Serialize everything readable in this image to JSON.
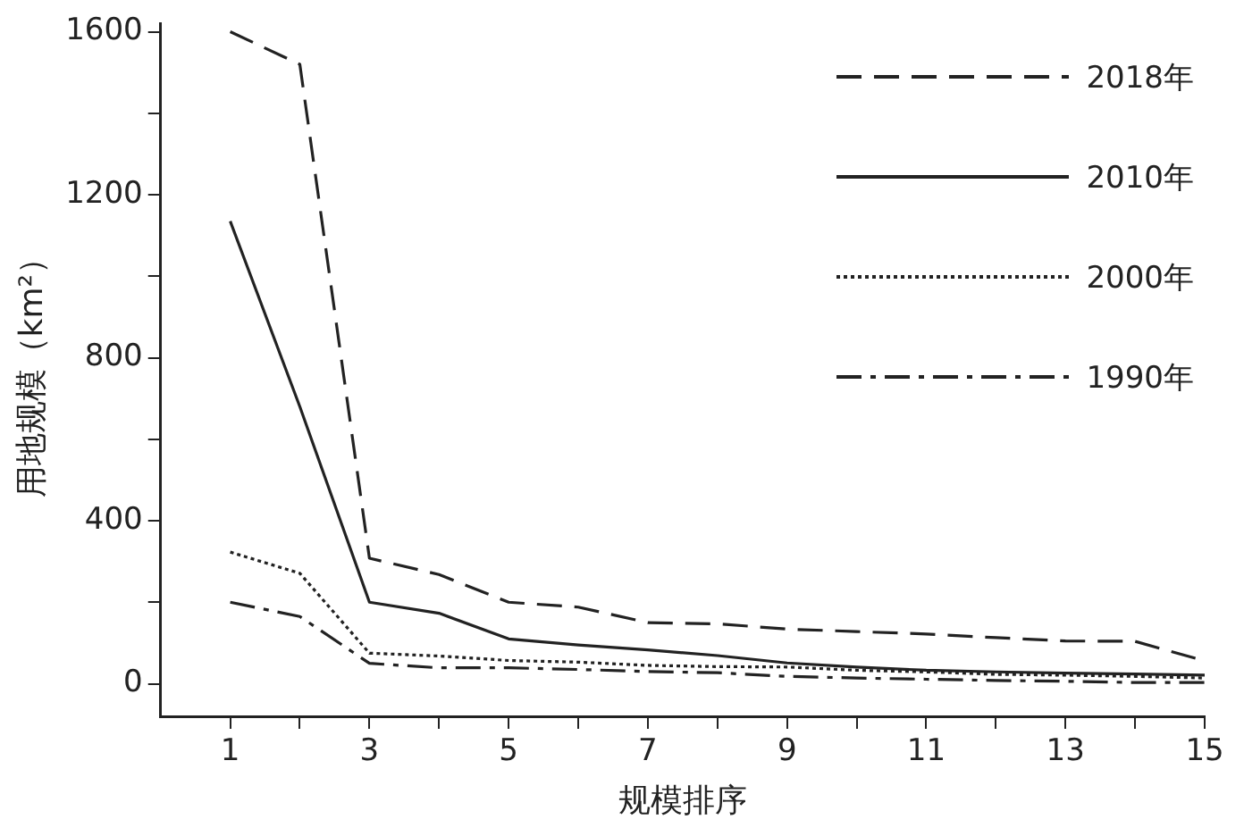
{
  "chart_data": {
    "type": "line",
    "xlabel": "规模排序",
    "ylabel": "用地规模（km²）",
    "x": [
      1,
      2,
      3,
      4,
      5,
      6,
      7,
      8,
      9,
      10,
      11,
      12,
      13,
      14,
      15
    ],
    "xlim": [
      0,
      15
    ],
    "xticks": [
      1,
      {
        "value": 2,
        "label": null
      },
      3,
      {
        "value": 4,
        "label": null
      },
      5,
      {
        "value": 6,
        "label": null
      },
      7,
      {
        "value": 8,
        "label": null
      },
      9,
      {
        "value": 10,
        "label": null
      },
      11,
      {
        "value": 12,
        "label": null
      },
      13,
      {
        "value": 14,
        "label": null
      },
      15
    ],
    "ylim": [
      -80,
      1620
    ],
    "yticks": [
      0,
      {
        "value": 200,
        "label": null
      },
      400,
      {
        "value": 600,
        "label": null
      },
      800,
      {
        "value": 1000,
        "label": null
      },
      1200,
      {
        "value": 1400,
        "label": null
      },
      1600
    ],
    "grid": false,
    "legend": "top right",
    "marker": "none",
    "series": [
      {
        "name": "2018年",
        "color": "#222222",
        "line_style": "dashed",
        "values": [
          1600,
          1520,
          308,
          268,
          200,
          188,
          150,
          147,
          134,
          128,
          122,
          113,
          105,
          104,
          56
        ]
      },
      {
        "name": "2010年",
        "color": "#222222",
        "line_style": "solid",
        "values": [
          1135,
          680,
          200,
          173,
          110,
          95,
          83,
          69,
          51,
          41,
          33,
          29,
          26,
          24,
          21
        ]
      },
      {
        "name": "2000年",
        "color": "#222222",
        "line_style": "dotted",
        "values": [
          323,
          271,
          75,
          68,
          57,
          53,
          45,
          42,
          41,
          33,
          29,
          23,
          21,
          18,
          14
        ]
      },
      {
        "name": "1990年",
        "color": "#222222",
        "line_style": "dashdot",
        "values": [
          200,
          165,
          50,
          39,
          39,
          35,
          30,
          27,
          18,
          14,
          11,
          8,
          6,
          3,
          3
        ]
      }
    ]
  }
}
